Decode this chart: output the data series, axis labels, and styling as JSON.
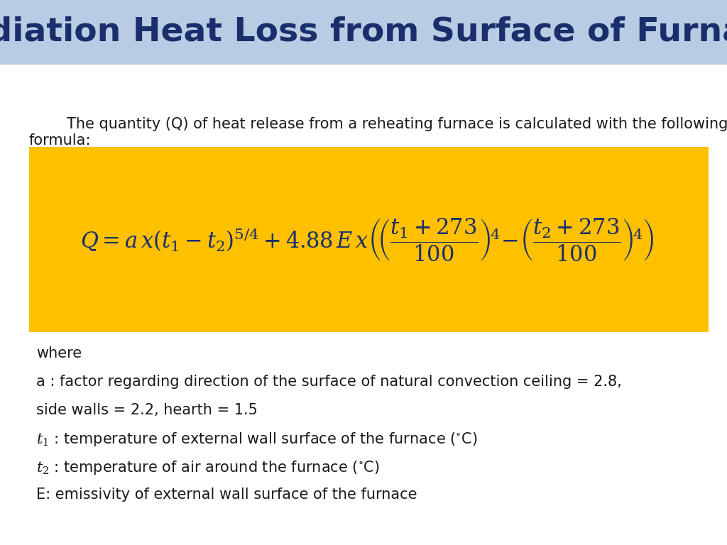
{
  "title": "Radiation Heat Loss from Surface of Furnace",
  "title_color": "#1a2e6b",
  "title_bg_color": "#b8cce4",
  "title_fontsize": 34,
  "bg_color": "#ffffff",
  "formula_bg_color": "#ffc000",
  "formula_color": "#1a2e6b",
  "body_text_color": "#1a1a1a",
  "intro_line1": "        The quantity (Q) of heat release from a reheating furnace is calculated with the following",
  "intro_line2": "formula:",
  "formula_latex": "$Q=a\\,x(t_1 - t_2)^{5/4}+4.88\\,E\\,x\\left(\\!\\left(\\dfrac{t_1+273}{100}\\right)^{\\!4}\\!-\\!\\left(\\dfrac{t_2+273}{100}\\right)^{\\!4}\\right)$",
  "where_lines": [
    "where",
    "a : factor regarding direction of the surface of natural convection ceiling = 2.8,",
    "side walls = 2.2, hearth = 1.5",
    "$t_1$ : temperature of external wall surface of the furnace ($^{\\circ}$C)",
    "$t_2$ : temperature of air around the furnace ($^{\\circ}$C)",
    "E: emissivity of external wall surface of the furnace"
  ],
  "body_fontsize": 15,
  "where_fontsize": 15
}
